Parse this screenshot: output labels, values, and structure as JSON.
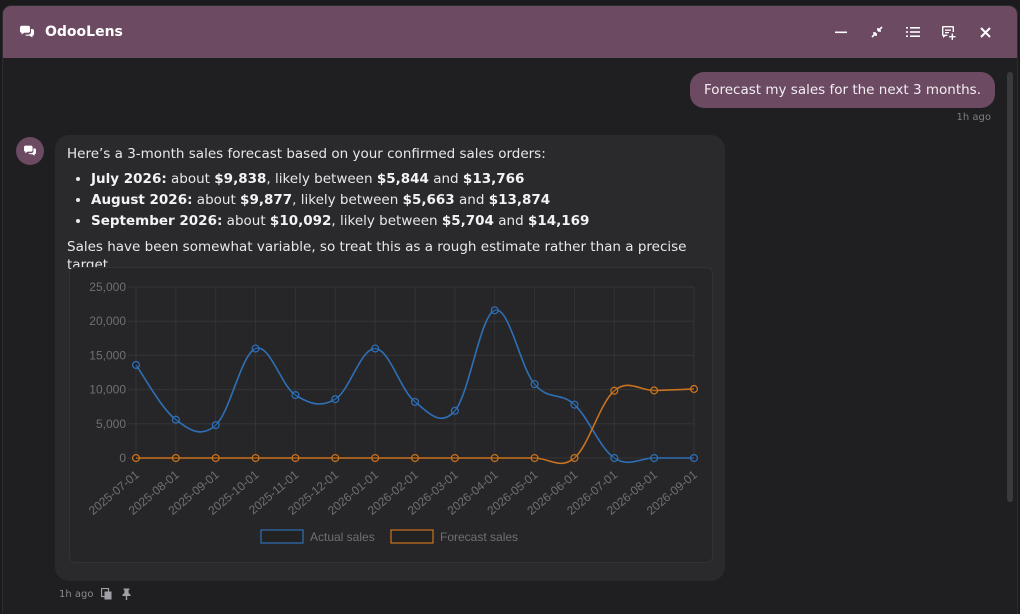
{
  "app": {
    "title": "OdooLens"
  },
  "titlebar": {
    "actions": [
      "minimize-icon",
      "collapse-icon",
      "list-icon",
      "new-chat-icon",
      "close-icon"
    ]
  },
  "messages": {
    "user": {
      "text": "Forecast my sales for the next 3 months.",
      "time": "1h ago"
    },
    "assistant": {
      "intro": "Here’s a 3-month sales forecast based on your confirmed sales orders:",
      "items": [
        {
          "month": "July 2026:",
          "about_label": " about ",
          "value": "$9,838",
          "between_label": ", likely between ",
          "low": "$5,844",
          "and_label": " and ",
          "high": "$13,766"
        },
        {
          "month": "August 2026:",
          "about_label": " about ",
          "value": "$9,877",
          "between_label": ", likely between ",
          "low": "$5,663",
          "and_label": " and ",
          "high": "$13,874"
        },
        {
          "month": "September 2026:",
          "about_label": " about ",
          "value": "$10,092",
          "between_label": ", likely between ",
          "low": "$5,704",
          "and_label": " and ",
          "high": "$14,169"
        }
      ],
      "note": "Sales have been somewhat variable, so treat this as a rough estimate rather than a precise target.",
      "time": "1h ago"
    }
  },
  "chart_data": {
    "type": "line",
    "x": [
      "2025-07-01",
      "2025-08-01",
      "2025-09-01",
      "2025-10-01",
      "2025-11-01",
      "2025-12-01",
      "2026-01-01",
      "2026-02-01",
      "2026-03-01",
      "2026-04-01",
      "2026-05-01",
      "2026-06-01",
      "2026-07-01",
      "2026-08-01",
      "2026-09-01"
    ],
    "series": [
      {
        "name": "Actual sales",
        "color": "#2f6fb5",
        "values": [
          13600,
          5600,
          4800,
          16000,
          9200,
          8600,
          16000,
          8200,
          6900,
          21600,
          10800,
          7800,
          0,
          0,
          0
        ]
      },
      {
        "name": "Forecast sales",
        "color": "#c8721f",
        "values": [
          0,
          0,
          0,
          0,
          0,
          0,
          0,
          0,
          0,
          0,
          0,
          0,
          9838,
          9877,
          10092
        ]
      }
    ],
    "yticks": [
      "25,000",
      "20,000",
      "15,000",
      "10,000",
      "5,000",
      "0"
    ],
    "ylim": [
      0,
      25000
    ],
    "legend": "bottom",
    "grid": true
  },
  "colors": {
    "accent": "#6b4a62",
    "actual": "#2f6fb5",
    "forecast": "#c8721f"
  }
}
